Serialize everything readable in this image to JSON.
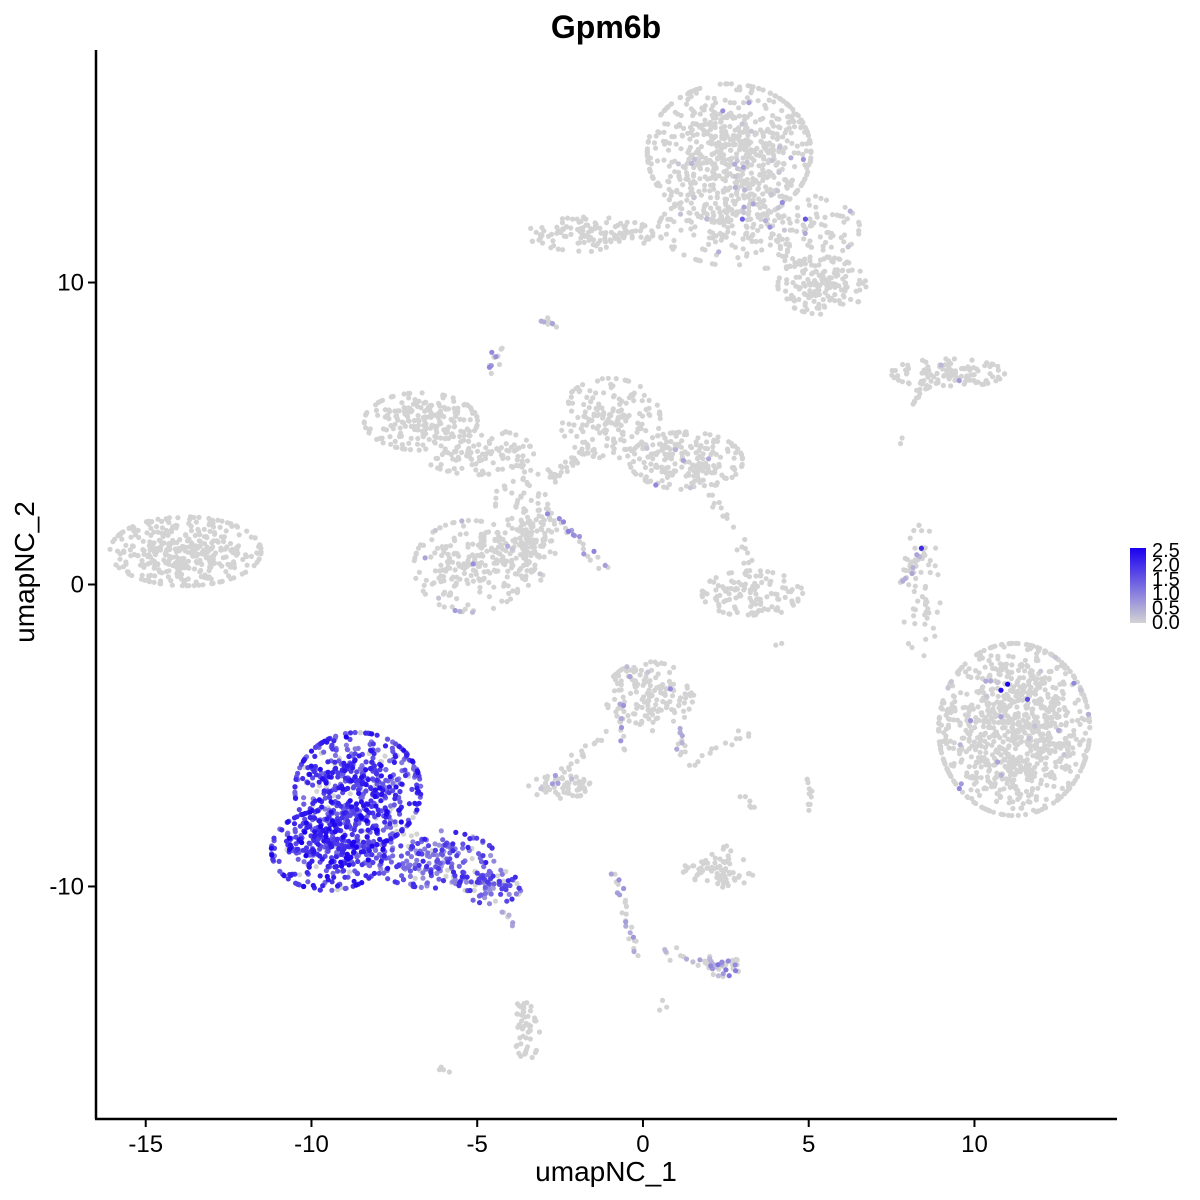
{
  "chart_data": {
    "type": "scatter",
    "title": "Gpm6b",
    "xlabel": "umapNC_1",
    "ylabel": "umapNC_2",
    "xlim": [
      -16.5,
      14.3
    ],
    "ylim": [
      -17.7,
      17.7
    ],
    "x_ticks": [
      -15,
      -10,
      -5,
      0,
      5,
      10
    ],
    "x_tick_labels": [
      "-15",
      "-10",
      "-5",
      "0",
      "5",
      "10"
    ],
    "y_ticks": [
      -10,
      0,
      10
    ],
    "y_tick_labels": [
      "-10",
      "0",
      "10"
    ],
    "grid": false,
    "legend": {
      "placement": "right",
      "type": "colorbar",
      "min": 0.0,
      "max": 2.5,
      "ticks": [
        0.0,
        0.5,
        1.0,
        1.5,
        2.0,
        2.5
      ],
      "tick_labels": [
        "0.0",
        "0.5",
        "1.0",
        "1.5",
        "2.0",
        "2.5"
      ],
      "low_color": "#d3d3d3",
      "high_color": "#1a00f0"
    },
    "clusters": [
      {
        "cx": 2.6,
        "cy": 14.3,
        "sx": 1.3,
        "sy": 1.2,
        "n": 700,
        "expr": 0.0,
        "sparse": 0.03
      },
      {
        "cx": 3.5,
        "cy": 11.8,
        "sx": 1.6,
        "sy": 0.7,
        "n": 260,
        "expr": 0.0,
        "sparse": 0.05
      },
      {
        "cx": 5.4,
        "cy": 9.9,
        "sx": 0.7,
        "sy": 0.5,
        "n": 160,
        "expr": 0.0,
        "sparse": 0.0
      },
      {
        "cx": -1.6,
        "cy": 11.6,
        "sx": 1.0,
        "sy": 0.3,
        "n": 130,
        "expr": 0.0,
        "sparse": 0.0
      },
      {
        "cx": 9.2,
        "cy": 7.0,
        "sx": 0.9,
        "sy": 0.25,
        "n": 110,
        "expr": 0.0,
        "sparse": 0.02
      },
      {
        "cx": -13.8,
        "cy": 1.1,
        "sx": 1.2,
        "sy": 0.6,
        "n": 380,
        "expr": 0.0,
        "sparse": 0.0
      },
      {
        "cx": -6.7,
        "cy": 5.4,
        "sx": 0.9,
        "sy": 0.5,
        "n": 200,
        "expr": 0.0,
        "sparse": 0.0
      },
      {
        "cx": -5.0,
        "cy": 4.4,
        "sx": 0.9,
        "sy": 0.4,
        "n": 110,
        "expr": 0.0,
        "sparse": 0.0
      },
      {
        "cx": -1.0,
        "cy": 5.5,
        "sx": 0.8,
        "sy": 0.7,
        "n": 170,
        "expr": 0.0,
        "sparse": 0.0
      },
      {
        "cx": 1.3,
        "cy": 4.1,
        "sx": 0.9,
        "sy": 0.5,
        "n": 220,
        "expr": 0.0,
        "sparse": 0.02
      },
      {
        "cx": -3.5,
        "cy": 2.5,
        "sx": 0.5,
        "sy": 1.1,
        "n": 100,
        "expr": 0.0,
        "sparse": 0.0
      },
      {
        "cx": -5.2,
        "cy": 0.6,
        "sx": 0.9,
        "sy": 0.8,
        "n": 210,
        "expr": 0.0,
        "sparse": 0.02
      },
      {
        "cx": -3.6,
        "cy": 1.1,
        "sx": 0.5,
        "sy": 0.6,
        "n": 90,
        "expr": 0.0,
        "sparse": 0.03
      },
      {
        "cx": 3.3,
        "cy": -0.3,
        "sx": 0.8,
        "sy": 0.4,
        "n": 110,
        "expr": 0.0,
        "sparse": 0.0
      },
      {
        "cx": 11.2,
        "cy": -4.8,
        "sx": 1.2,
        "sy": 1.5,
        "n": 1000,
        "expr": 0.0,
        "sparse": 0.02
      },
      {
        "cx": 0.2,
        "cy": -3.7,
        "sx": 0.7,
        "sy": 0.6,
        "n": 160,
        "expr": 0.0,
        "sparse": 0.04
      },
      {
        "cx": -2.5,
        "cy": -6.7,
        "sx": 0.5,
        "sy": 0.2,
        "n": 60,
        "expr": 0.0,
        "sparse": 0.05
      },
      {
        "cx": 2.2,
        "cy": -9.5,
        "sx": 0.6,
        "sy": 0.3,
        "n": 60,
        "expr": 0.0,
        "sparse": 0.0
      },
      {
        "cx": 2.4,
        "cy": -12.6,
        "sx": 0.3,
        "sy": 0.2,
        "n": 40,
        "expr": 0.4,
        "sparse": 0.3
      },
      {
        "cx": -3.5,
        "cy": -14.8,
        "sx": 0.2,
        "sy": 0.5,
        "n": 50,
        "expr": 0.0,
        "sparse": 0.0
      },
      {
        "cx": 8.4,
        "cy": -0.3,
        "sx": 0.3,
        "sy": 1.2,
        "n": 50,
        "expr": 0.0,
        "sparse": 0.02
      },
      {
        "cx": -8.6,
        "cy": -6.8,
        "sx": 1.0,
        "sy": 1.0,
        "n": 560,
        "expr": 1.5,
        "sparse": 0.9
      },
      {
        "cx": -9.5,
        "cy": -8.8,
        "sx": 0.9,
        "sy": 0.7,
        "n": 340,
        "expr": 1.6,
        "sparse": 0.95
      },
      {
        "cx": -6.3,
        "cy": -9.1,
        "sx": 1.0,
        "sy": 0.5,
        "n": 200,
        "expr": 1.2,
        "sparse": 0.85
      },
      {
        "cx": -4.6,
        "cy": -10.0,
        "sx": 0.5,
        "sy": 0.3,
        "n": 80,
        "expr": 1.1,
        "sparse": 0.75
      }
    ],
    "scatter_paths": [
      {
        "x0": -2.7,
        "y0": 8.6,
        "x1": -3.0,
        "y1": 8.8,
        "n": 10,
        "expr": 0.3
      },
      {
        "x0": -4.6,
        "y0": 7.1,
        "x1": -4.4,
        "y1": 7.8,
        "n": 12,
        "expr": 0.5
      },
      {
        "x0": -2.8,
        "y0": 3.5,
        "x1": -1.6,
        "y1": 4.5,
        "n": 30,
        "expr": 0.0
      },
      {
        "x0": -2.9,
        "y0": 2.5,
        "x1": -1.2,
        "y1": 0.6,
        "n": 25,
        "expr": 0.6
      },
      {
        "x0": 2.1,
        "y0": 3.0,
        "x1": 2.5,
        "y1": 2.0,
        "n": 10,
        "expr": 0.0
      },
      {
        "x0": 3.0,
        "y0": 1.5,
        "x1": 3.5,
        "y1": -1.0,
        "n": 20,
        "expr": 0.0
      },
      {
        "x0": 8.5,
        "y0": 1.2,
        "x1": 7.8,
        "y1": 0.1,
        "n": 25,
        "expr": 0.3
      },
      {
        "x0": 8.1,
        "y0": 6.0,
        "x1": 8.6,
        "y1": 6.6,
        "n": 12,
        "expr": 0.0
      },
      {
        "x0": 1.1,
        "y0": -4.8,
        "x1": 1.2,
        "y1": -5.6,
        "n": 12,
        "expr": 0.3
      },
      {
        "x0": -1.2,
        "y0": -5.0,
        "x1": -2.7,
        "y1": -6.5,
        "n": 20,
        "expr": 0.0
      },
      {
        "x0": -0.7,
        "y0": -4.0,
        "x1": -0.6,
        "y1": -5.5,
        "n": 10,
        "expr": 0.4
      },
      {
        "x0": 1.3,
        "y0": -6.0,
        "x1": 2.8,
        "y1": -5.1,
        "n": 10,
        "expr": 0.0
      },
      {
        "x0": 3.0,
        "y0": -7.0,
        "x1": 3.3,
        "y1": -7.5,
        "n": 6,
        "expr": 0.0
      },
      {
        "x0": 5.0,
        "y0": -6.3,
        "x1": 5.1,
        "y1": -7.5,
        "n": 10,
        "expr": 0.0
      },
      {
        "x0": -0.9,
        "y0": -9.5,
        "x1": -0.2,
        "y1": -12.3,
        "n": 25,
        "expr": 0.4
      },
      {
        "x0": 0.5,
        "y0": -12.2,
        "x1": 2.2,
        "y1": -12.6,
        "n": 15,
        "expr": 0.2
      },
      {
        "x0": 2.5,
        "y0": -8.5,
        "x1": 2.5,
        "y1": -9.8,
        "n": 12,
        "expr": 0.0
      },
      {
        "x0": -4.3,
        "y0": -10.8,
        "x1": -3.9,
        "y1": -11.3,
        "n": 6,
        "expr": 0.3
      },
      {
        "x0": -6.1,
        "y0": -16.0,
        "x1": -5.9,
        "y1": -16.1,
        "n": 4,
        "expr": 0.0
      },
      {
        "x0": -3.7,
        "y0": -13.8,
        "x1": -3.6,
        "y1": -14.2,
        "n": 4,
        "expr": 0.0
      },
      {
        "x0": 0.6,
        "y0": -13.8,
        "x1": 0.7,
        "y1": -14.0,
        "n": 3,
        "expr": 0.0
      },
      {
        "x0": 7.8,
        "y0": 4.7,
        "x1": 7.9,
        "y1": 4.8,
        "n": 2,
        "expr": 0.0
      },
      {
        "x0": 4.1,
        "y0": -1.9,
        "x1": 4.1,
        "y1": -2.0,
        "n": 2,
        "expr": 0.0
      },
      {
        "x0": 2.9,
        "y0": -4.9,
        "x1": 3.1,
        "y1": -5.0,
        "n": 4,
        "expr": 0.0
      }
    ],
    "highlight_points": [
      {
        "x": -8.95,
        "y": -5.05,
        "v": 2.5
      },
      {
        "x": -10.2,
        "y": -8.2,
        "v": 2.5
      },
      {
        "x": 11.0,
        "y": -3.3,
        "v": 2.5
      },
      {
        "x": 10.8,
        "y": -3.5,
        "v": 2.3
      },
      {
        "x": 8.4,
        "y": 1.2,
        "v": 2.0
      },
      {
        "x": -7.9,
        "y": -6.0,
        "v": 2.4
      },
      {
        "x": -7.7,
        "y": -9.4,
        "v": 2.3
      },
      {
        "x": -8.8,
        "y": -6.5,
        "v": 2.3
      },
      {
        "x": 4.9,
        "y": 12.1,
        "v": 1.5
      },
      {
        "x": 3.0,
        "y": 12.1,
        "v": 1.3
      },
      {
        "x": 11.6,
        "y": -3.8,
        "v": 1.6
      }
    ]
  }
}
